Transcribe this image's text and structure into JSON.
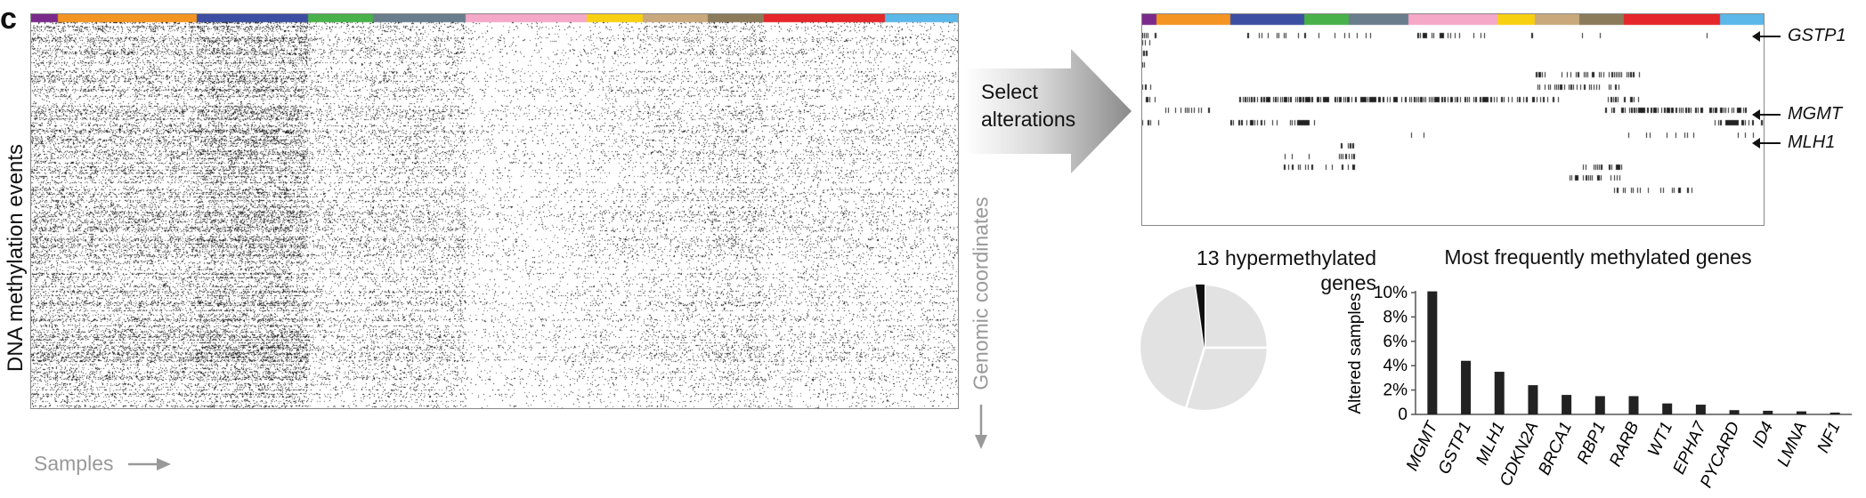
{
  "panel_letter": "c",
  "left_heatmap": {
    "y_label": "DNA methylation events",
    "x_label": "Samples",
    "side_label": "Genomic coordinates",
    "cancer_type_colors": [
      "#7b2a8c",
      "#f39423",
      "#3c4ea1",
      "#48b14a",
      "#6a7d8c",
      "#f5a8c8",
      "#f8d012",
      "#c9a87c",
      "#8b7b5a",
      "#e5262a",
      "#5bb8e9"
    ],
    "color_band_widths": [
      3,
      15,
      12,
      7,
      10,
      13,
      6,
      7,
      6,
      13,
      8
    ]
  },
  "middle_arrow": {
    "lines": [
      "Select",
      "alterations"
    ]
  },
  "right_heatmap": {
    "cancer_type_colors": [
      "#7b2a8c",
      "#f39423",
      "#3c4ea1",
      "#48b14a",
      "#6a7d8c",
      "#f5a8c8",
      "#f8d012",
      "#c9a87c",
      "#8b7b5a",
      "#e5262a",
      "#5bb8e9"
    ],
    "color_band_widths": [
      2,
      10,
      10,
      6,
      8,
      12,
      5,
      6,
      6,
      13,
      6
    ],
    "row_labels": [
      "GSTP1",
      "MGMT",
      "MLH1"
    ]
  },
  "pie": {
    "title_lines": [
      "13 hypermethylated",
      "genes"
    ]
  },
  "chart_data": {
    "type": "bar",
    "title": "Most frequently methylated genes",
    "ylabel": "Altered samples",
    "xlabel": "",
    "categories": [
      "MGMT",
      "GSTP1",
      "MLH1",
      "CDKN2A",
      "BRCA1",
      "RBP1",
      "RARB",
      "WT1",
      "EPHA7",
      "PYCARD",
      "ID4",
      "LMNA",
      "NF1"
    ],
    "values": [
      10.1,
      4.4,
      3.5,
      2.4,
      1.6,
      1.5,
      1.5,
      0.9,
      0.8,
      0.35,
      0.3,
      0.25,
      0.15
    ],
    "ylim": [
      0,
      10
    ],
    "yticks": [
      "0",
      "2%",
      "4%",
      "6%",
      "8%",
      "10%"
    ],
    "bar_color": "#222222"
  }
}
